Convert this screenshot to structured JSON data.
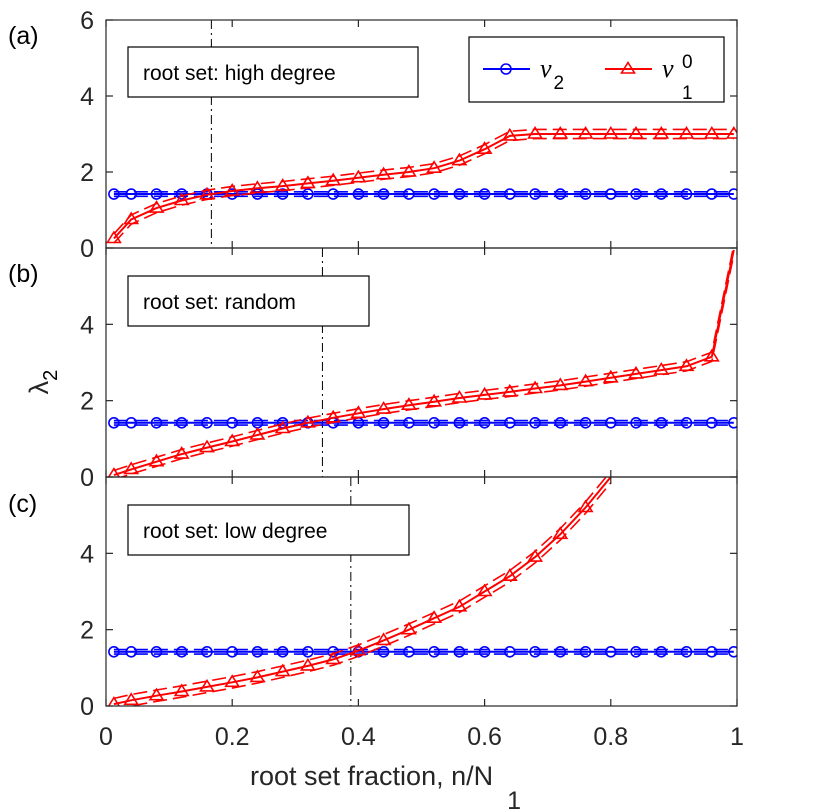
{
  "chart_data": [
    {
      "type": "line",
      "panel_label": "(a)",
      "annotation": "root set: high degree",
      "xlim": [
        0,
        1
      ],
      "ylim": [
        0,
        6
      ],
      "yticks": [
        0,
        2,
        4,
        6
      ],
      "vline_x": 0.167,
      "series": [
        {
          "name": "nu_2",
          "color": "#0000ff",
          "marker": "circle",
          "x": [
            0.0125,
            0.04,
            0.08,
            0.12,
            0.16,
            0.2,
            0.24,
            0.28,
            0.32,
            0.36,
            0.4,
            0.44,
            0.48,
            0.52,
            0.56,
            0.6,
            0.64,
            0.68,
            0.72,
            0.76,
            0.8,
            0.84,
            0.88,
            0.92,
            0.96,
            0.995
          ],
          "values": [
            1.42,
            1.42,
            1.42,
            1.42,
            1.42,
            1.42,
            1.42,
            1.42,
            1.42,
            1.42,
            1.42,
            1.42,
            1.42,
            1.42,
            1.42,
            1.42,
            1.42,
            1.42,
            1.42,
            1.42,
            1.42,
            1.42,
            1.42,
            1.42,
            1.42,
            1.42
          ],
          "band": 0.06
        },
        {
          "name": "nu_1^0",
          "color": "#ff0000",
          "marker": "triangle",
          "x": [
            0.0125,
            0.04,
            0.08,
            0.12,
            0.16,
            0.2,
            0.24,
            0.28,
            0.32,
            0.36,
            0.4,
            0.44,
            0.48,
            0.52,
            0.56,
            0.6,
            0.64,
            0.68,
            0.72,
            0.76,
            0.8,
            0.84,
            0.88,
            0.92,
            0.96,
            0.995
          ],
          "values": [
            0.25,
            0.75,
            1.05,
            1.25,
            1.4,
            1.5,
            1.57,
            1.63,
            1.7,
            1.77,
            1.85,
            1.93,
            2.0,
            2.1,
            2.3,
            2.6,
            2.95,
            3.0,
            3.0,
            3.0,
            3.0,
            3.0,
            3.0,
            3.0,
            3.0,
            3.0
          ],
          "band": 0.12
        }
      ],
      "legend": {
        "entries": [
          {
            "symbol": "ν",
            "sub": "2",
            "sup": ""
          },
          {
            "symbol": "ν",
            "sub": "1",
            "sup": "0"
          }
        ]
      }
    },
    {
      "type": "line",
      "panel_label": "(b)",
      "annotation": "root set: random",
      "xlim": [
        0,
        1
      ],
      "ylim": [
        0,
        6
      ],
      "yticks": [
        0,
        2,
        4
      ],
      "vline_x": 0.343,
      "series": [
        {
          "name": "nu_2",
          "color": "#0000ff",
          "marker": "circle",
          "x": [
            0.0125,
            0.04,
            0.08,
            0.12,
            0.16,
            0.2,
            0.24,
            0.28,
            0.32,
            0.36,
            0.4,
            0.44,
            0.48,
            0.52,
            0.56,
            0.6,
            0.64,
            0.68,
            0.72,
            0.76,
            0.8,
            0.84,
            0.88,
            0.92,
            0.96,
            0.995
          ],
          "values": [
            1.42,
            1.42,
            1.42,
            1.42,
            1.42,
            1.42,
            1.42,
            1.42,
            1.42,
            1.42,
            1.42,
            1.42,
            1.42,
            1.42,
            1.42,
            1.42,
            1.42,
            1.42,
            1.42,
            1.42,
            1.42,
            1.42,
            1.42,
            1.42,
            1.42,
            1.42
          ],
          "band": 0.06
        },
        {
          "name": "nu_1^0",
          "color": "#ff0000",
          "marker": "triangle",
          "x": [
            0.0125,
            0.04,
            0.08,
            0.12,
            0.16,
            0.2,
            0.24,
            0.28,
            0.32,
            0.36,
            0.4,
            0.44,
            0.48,
            0.52,
            0.56,
            0.6,
            0.64,
            0.68,
            0.72,
            0.76,
            0.8,
            0.84,
            0.88,
            0.92,
            0.96,
            0.995
          ],
          "values": [
            0.05,
            0.2,
            0.4,
            0.6,
            0.77,
            0.93,
            1.1,
            1.27,
            1.42,
            1.55,
            1.67,
            1.78,
            1.88,
            1.97,
            2.07,
            2.15,
            2.23,
            2.32,
            2.4,
            2.5,
            2.6,
            2.7,
            2.8,
            2.9,
            3.15,
            5.95
          ],
          "band": 0.12
        }
      ]
    },
    {
      "type": "line",
      "panel_label": "(c)",
      "annotation": "root set: low degree",
      "xlim": [
        0,
        1
      ],
      "ylim": [
        0,
        6
      ],
      "yticks": [
        0,
        2,
        4
      ],
      "vline_x": 0.388,
      "series": [
        {
          "name": "nu_2",
          "color": "#0000ff",
          "marker": "circle",
          "x": [
            0.0125,
            0.04,
            0.08,
            0.12,
            0.16,
            0.2,
            0.24,
            0.28,
            0.32,
            0.36,
            0.4,
            0.44,
            0.48,
            0.52,
            0.56,
            0.6,
            0.64,
            0.68,
            0.72,
            0.76,
            0.8,
            0.84,
            0.88,
            0.92,
            0.96,
            0.995
          ],
          "values": [
            1.42,
            1.42,
            1.42,
            1.42,
            1.42,
            1.42,
            1.42,
            1.42,
            1.42,
            1.42,
            1.42,
            1.42,
            1.42,
            1.42,
            1.42,
            1.42,
            1.42,
            1.42,
            1.42,
            1.42,
            1.42,
            1.42,
            1.42,
            1.42,
            1.42,
            1.42
          ],
          "band": 0.06
        },
        {
          "name": "nu_1^0",
          "color": "#ff0000",
          "marker": "triangle",
          "x": [
            0.0125,
            0.04,
            0.08,
            0.12,
            0.16,
            0.2,
            0.24,
            0.28,
            0.32,
            0.36,
            0.4,
            0.44,
            0.48,
            0.52,
            0.56,
            0.6,
            0.64,
            0.68,
            0.72,
            0.76,
            0.8
          ],
          "values": [
            0.05,
            0.15,
            0.27,
            0.38,
            0.5,
            0.62,
            0.75,
            0.9,
            1.05,
            1.22,
            1.45,
            1.72,
            2.0,
            2.3,
            2.6,
            3.0,
            3.4,
            3.9,
            4.5,
            5.2,
            6.0
          ],
          "band": 0.15
        }
      ]
    }
  ],
  "xaxis": {
    "ticks": [
      0,
      0.2,
      0.4,
      0.6,
      0.8,
      1
    ],
    "tick_labels": [
      "0",
      "0.2",
      "0.4",
      "0.6",
      "0.8",
      "1"
    ],
    "label": "root set fraction, n/N",
    "label_sub": "1"
  },
  "yaxis": {
    "label": "λ",
    "label_sub": "2"
  }
}
